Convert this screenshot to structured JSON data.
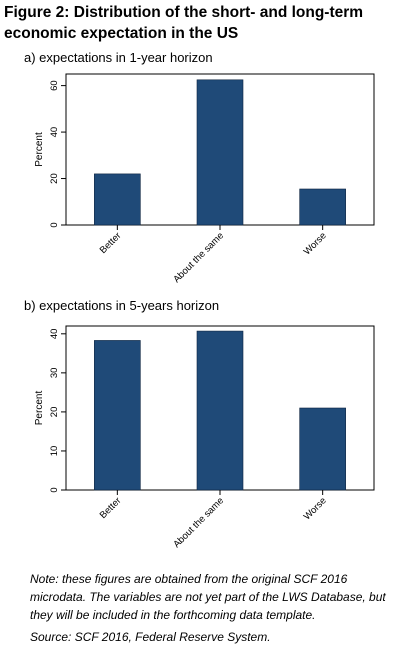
{
  "figure": {
    "title": "Figure 2: Distribution of the short- and long-term economic expectation in the US",
    "note": "Note: these figures are obtained from the original SCF 2016 microdata. The variables are not yet part of the LWS Database, but they will be included in the forthcoming data template.",
    "source": "Source: SCF 2016, Federal Reserve System."
  },
  "colors": {
    "bar": "#1f4a78",
    "axis": "#000000"
  },
  "chart_data": [
    {
      "type": "bar",
      "panel_label": "a) expectations in 1-year horizon",
      "categories": [
        "Better",
        "About the same",
        "Worse"
      ],
      "values": [
        22,
        62.5,
        15.5
      ],
      "ylabel": "Percent",
      "ylim": [
        0,
        65
      ],
      "yticks": [
        0,
        20,
        40,
        60
      ],
      "grid": false
    },
    {
      "type": "bar",
      "panel_label": "b) expectations in 5-years horizon",
      "categories": [
        "Better",
        "About the same",
        "Worse"
      ],
      "values": [
        38.3,
        40.7,
        21
      ],
      "ylabel": "Percent",
      "ylim": [
        0,
        42
      ],
      "yticks": [
        0,
        10,
        20,
        30,
        40
      ],
      "grid": false
    }
  ]
}
